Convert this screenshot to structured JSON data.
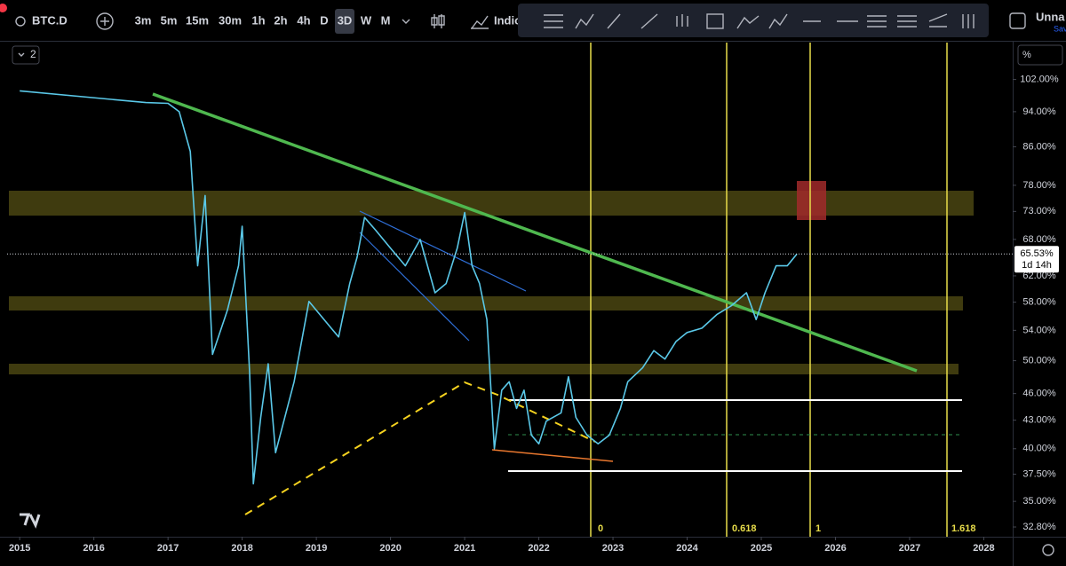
{
  "toolbar": {
    "symbol": "BTC.D",
    "intervals": [
      "3m",
      "5m",
      "15m",
      "30m",
      "1h",
      "2h",
      "4h",
      "D",
      "3D",
      "W",
      "M"
    ],
    "indicators": "Indic",
    "layout_name": "Unna",
    "save_status": "Sav"
  },
  "legend_count": "2",
  "scale_mode": "%",
  "fib_labels": [
    "0",
    "0.618",
    "1",
    "1.618"
  ],
  "chart_data": {
    "type": "line",
    "color": "#5ac8e8",
    "log_scale": true,
    "x": [
      2015.0,
      2016.7,
      2017.0,
      2017.15,
      2017.3,
      2017.4,
      2017.5,
      2017.6,
      2017.8,
      2017.95,
      2018.0,
      2018.1,
      2018.15,
      2018.25,
      2018.35,
      2018.45,
      2018.7,
      2018.9,
      2019.2,
      2019.3,
      2019.45,
      2019.55,
      2019.65,
      2019.8,
      2020.0,
      2020.2,
      2020.4,
      2020.6,
      2020.75,
      2020.9,
      2021.0,
      2021.1,
      2021.2,
      2021.3,
      2021.4,
      2021.5,
      2021.6,
      2021.7,
      2021.8,
      2021.9,
      2022.0,
      2022.1,
      2022.3,
      2022.4,
      2022.5,
      2022.65,
      2022.8,
      2022.95,
      2023.1,
      2023.2,
      2023.4,
      2023.55,
      2023.7,
      2023.85,
      2024.0,
      2024.2,
      2024.4,
      2024.6,
      2024.8,
      2024.93,
      2025.05,
      2025.2,
      2025.35,
      2025.48
    ],
    "values": [
      99.1,
      96.2,
      96,
      94,
      85,
      63.6,
      76,
      50.8,
      56.8,
      63.6,
      70.3,
      48.5,
      36.6,
      43.3,
      49.6,
      39.6,
      47.4,
      58.1,
      54.3,
      53.1,
      60.8,
      65.0,
      71.9,
      69.6,
      66.5,
      63.6,
      68.0,
      59.4,
      60.8,
      66.5,
      72.8,
      63.6,
      60.8,
      55.5,
      40.0,
      46.4,
      47.4,
      44.3,
      46.4,
      41.4,
      40.5,
      42.9,
      43.8,
      48.0,
      43.3,
      41.4,
      40.5,
      41.4,
      44.3,
      47.4,
      49.1,
      51.3,
      50.2,
      52.5,
      53.7,
      54.3,
      56.2,
      57.5,
      59.4,
      55.5,
      59.4,
      63.6,
      63.6,
      65.53
    ],
    "last_price": {
      "value": 65.53,
      "label": "65.53%"
    },
    "countdown": "1d 14h",
    "xlim": [
      2014.83,
      2028.39
    ],
    "xticks": [
      2015,
      2016,
      2017,
      2018,
      2019,
      2020,
      2021,
      2022,
      2023,
      2024,
      2025,
      2026,
      2027,
      2028
    ],
    "ylim": [
      32,
      112
    ],
    "yticks": [
      {
        "value": 102,
        "label": "102.00%"
      },
      {
        "value": 94,
        "label": "94.00%"
      },
      {
        "value": 86,
        "label": "86.00%"
      },
      {
        "value": 78,
        "label": "78.00%"
      },
      {
        "value": 73,
        "label": "73.00%"
      },
      {
        "value": 68,
        "label": "68.00%"
      },
      {
        "value": 62,
        "label": "62.00%"
      },
      {
        "value": 58,
        "label": "58.00%"
      },
      {
        "value": 54,
        "label": "54.00%"
      },
      {
        "value": 50,
        "label": "50.00%"
      },
      {
        "value": 46,
        "label": "46.00%"
      },
      {
        "value": 43,
        "label": "43.00%"
      },
      {
        "value": 40,
        "label": "40.00%"
      },
      {
        "value": 37.5,
        "label": "37.50%"
      },
      {
        "value": 35,
        "label": "35.00%"
      },
      {
        "value": 32.8,
        "label": "32.80%"
      }
    ]
  }
}
